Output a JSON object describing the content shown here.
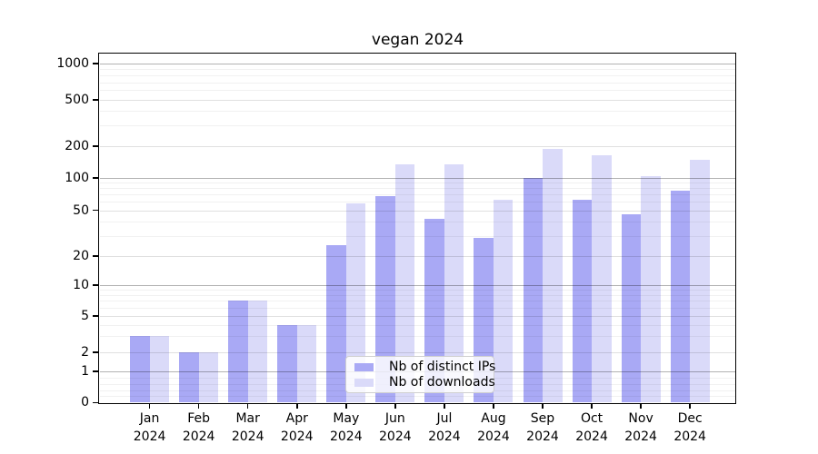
{
  "chart_data": {
    "type": "bar",
    "title": "vegan 2024",
    "categories": [
      "Jan 2024",
      "Feb 2024",
      "Mar 2024",
      "Apr 2024",
      "May 2024",
      "Jun 2024",
      "Jul 2024",
      "Aug 2024",
      "Sep 2024",
      "Oct 2024",
      "Nov 2024",
      "Dec 2024"
    ],
    "series": [
      {
        "name": "Nb of distinct IPs",
        "color": "#a9a9f5",
        "values": [
          3,
          2,
          7,
          4,
          25,
          68,
          42,
          29,
          100,
          62,
          46,
          76
        ]
      },
      {
        "name": "Nb of downloads",
        "color": "#dadaf9",
        "values": [
          3,
          2,
          7,
          4,
          58,
          135,
          135,
          62,
          190,
          165,
          105,
          150
        ]
      }
    ],
    "yaxis": {
      "scale": "asinh-log",
      "ylim": [
        0,
        1215
      ],
      "ticks": [
        0,
        1,
        2,
        5,
        10,
        20,
        50,
        100,
        200,
        500,
        1000
      ],
      "tick_labels": [
        "0",
        "1",
        "2",
        "5",
        "10",
        "20",
        "50",
        "100",
        "200",
        "500",
        "1000"
      ],
      "decade_ticks": [
        1,
        10,
        100,
        1000
      ],
      "minor_ticks": [
        0.2,
        0.4,
        0.6,
        0.8,
        3,
        4,
        6,
        7,
        8,
        9,
        30,
        40,
        60,
        70,
        80,
        90,
        300,
        400,
        600,
        700,
        800,
        900
      ]
    },
    "xaxis": {
      "year_line": "2024",
      "months": [
        "Jan",
        "Feb",
        "Mar",
        "Apr",
        "May",
        "Jun",
        "Jul",
        "Aug",
        "Sep",
        "Oct",
        "Nov",
        "Dec"
      ]
    },
    "grid": true,
    "legend_position": "lower center"
  },
  "colors": {
    "bar_ips": "#a9a9f5",
    "bar_downloads": "#dadaf9",
    "grid_decade": "rgba(0,0,0,0.30)",
    "grid_major": "rgba(0,0,0,0.12)",
    "grid_minor": "rgba(0,0,0,0.055)",
    "spine": "#000000",
    "background": "#ffffff",
    "text": "#000000"
  }
}
